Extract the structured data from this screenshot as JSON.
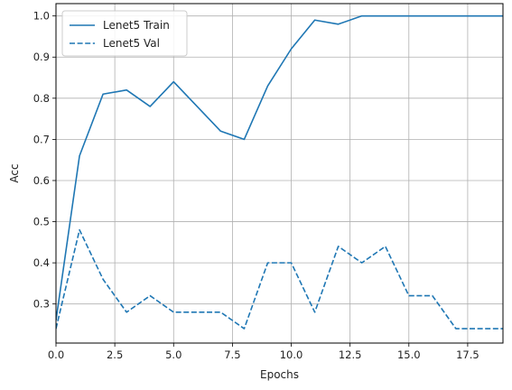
{
  "chart_data": {
    "type": "line",
    "xlabel": "Epochs",
    "ylabel": "Acc",
    "xlim": [
      0,
      19
    ],
    "ylim": [
      0.205,
      1.03
    ],
    "xticks": [
      "0.0",
      "2.5",
      "5.0",
      "7.5",
      "10.0",
      "12.5",
      "15.0",
      "17.5"
    ],
    "yticks": [
      "0.3",
      "0.4",
      "0.5",
      "0.6",
      "0.7",
      "0.8",
      "0.9",
      "1.0"
    ],
    "grid": true,
    "legend_position": "top-left",
    "x": [
      0,
      1,
      2,
      3,
      4,
      5,
      6,
      7,
      8,
      9,
      10,
      11,
      12,
      13,
      14,
      15,
      16,
      17,
      18,
      19
    ],
    "series": [
      {
        "name": "Lenet5 Train",
        "style": "solid",
        "color": "#1f77b4",
        "values": [
          0.26,
          0.66,
          0.81,
          0.82,
          0.78,
          0.84,
          0.78,
          0.72,
          0.7,
          0.83,
          0.92,
          0.99,
          0.98,
          1.0,
          1.0,
          1.0,
          1.0,
          1.0,
          1.0,
          1.0
        ]
      },
      {
        "name": "Lenet5 Val",
        "style": "dashed",
        "color": "#1f77b4",
        "values": [
          0.24,
          0.48,
          0.36,
          0.28,
          0.32,
          0.28,
          0.28,
          0.28,
          0.24,
          0.4,
          0.4,
          0.28,
          0.44,
          0.4,
          0.44,
          0.32,
          0.32,
          0.24,
          0.24,
          0.24
        ]
      }
    ]
  }
}
